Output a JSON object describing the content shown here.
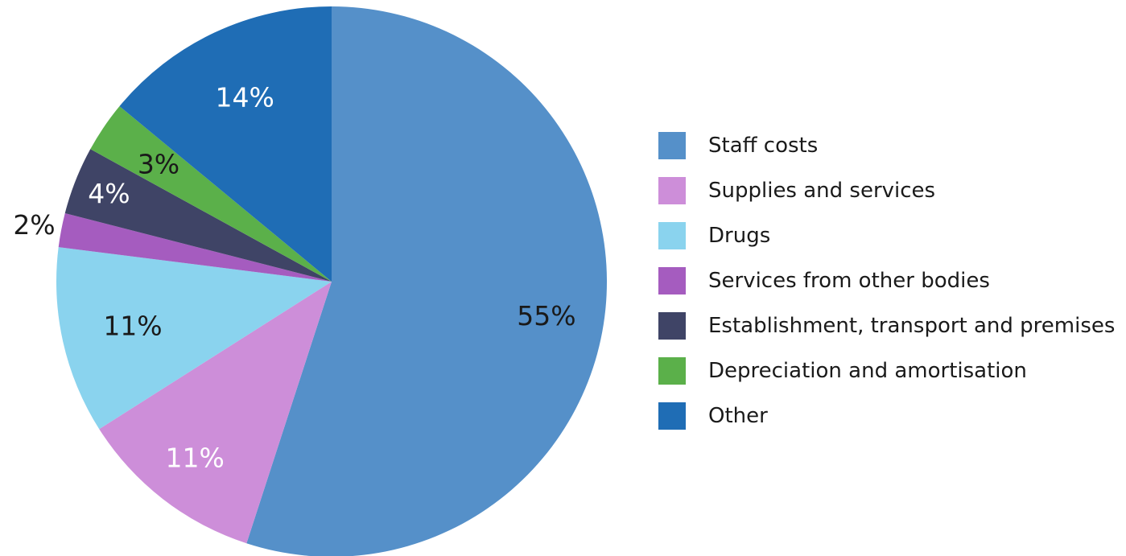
{
  "chart_data": {
    "type": "pie",
    "start_angle": "12 o'clock",
    "direction": "clockwise",
    "legend_position": "right",
    "slices": [
      {
        "label": "Staff costs",
        "value": 55,
        "display": "55%",
        "color": "#5590c9",
        "label_color": "#1a1a1a"
      },
      {
        "label": "Supplies and services",
        "value": 11,
        "display": "11%",
        "color": "#cd8ed9",
        "label_color": "#ffffff"
      },
      {
        "label": "Drugs",
        "value": 11,
        "display": "11%",
        "color": "#8ad3ee",
        "label_color": "#1a1a1a"
      },
      {
        "label": "Services from other bodies",
        "value": 2,
        "display": "2%",
        "color": "#a55cbf",
        "label_color": "#1a1a1a"
      },
      {
        "label": "Establishment, transport and premises",
        "value": 4,
        "display": "4%",
        "color": "#3f4466",
        "label_color": "#ffffff"
      },
      {
        "label": "Depreciation and amortisation",
        "value": 3,
        "display": "3%",
        "color": "#5bb04a",
        "label_color": "#1a1a1a"
      },
      {
        "label": "Other",
        "value": 14,
        "display": "14%",
        "color": "#1f6db5",
        "label_color": "#ffffff"
      }
    ]
  }
}
